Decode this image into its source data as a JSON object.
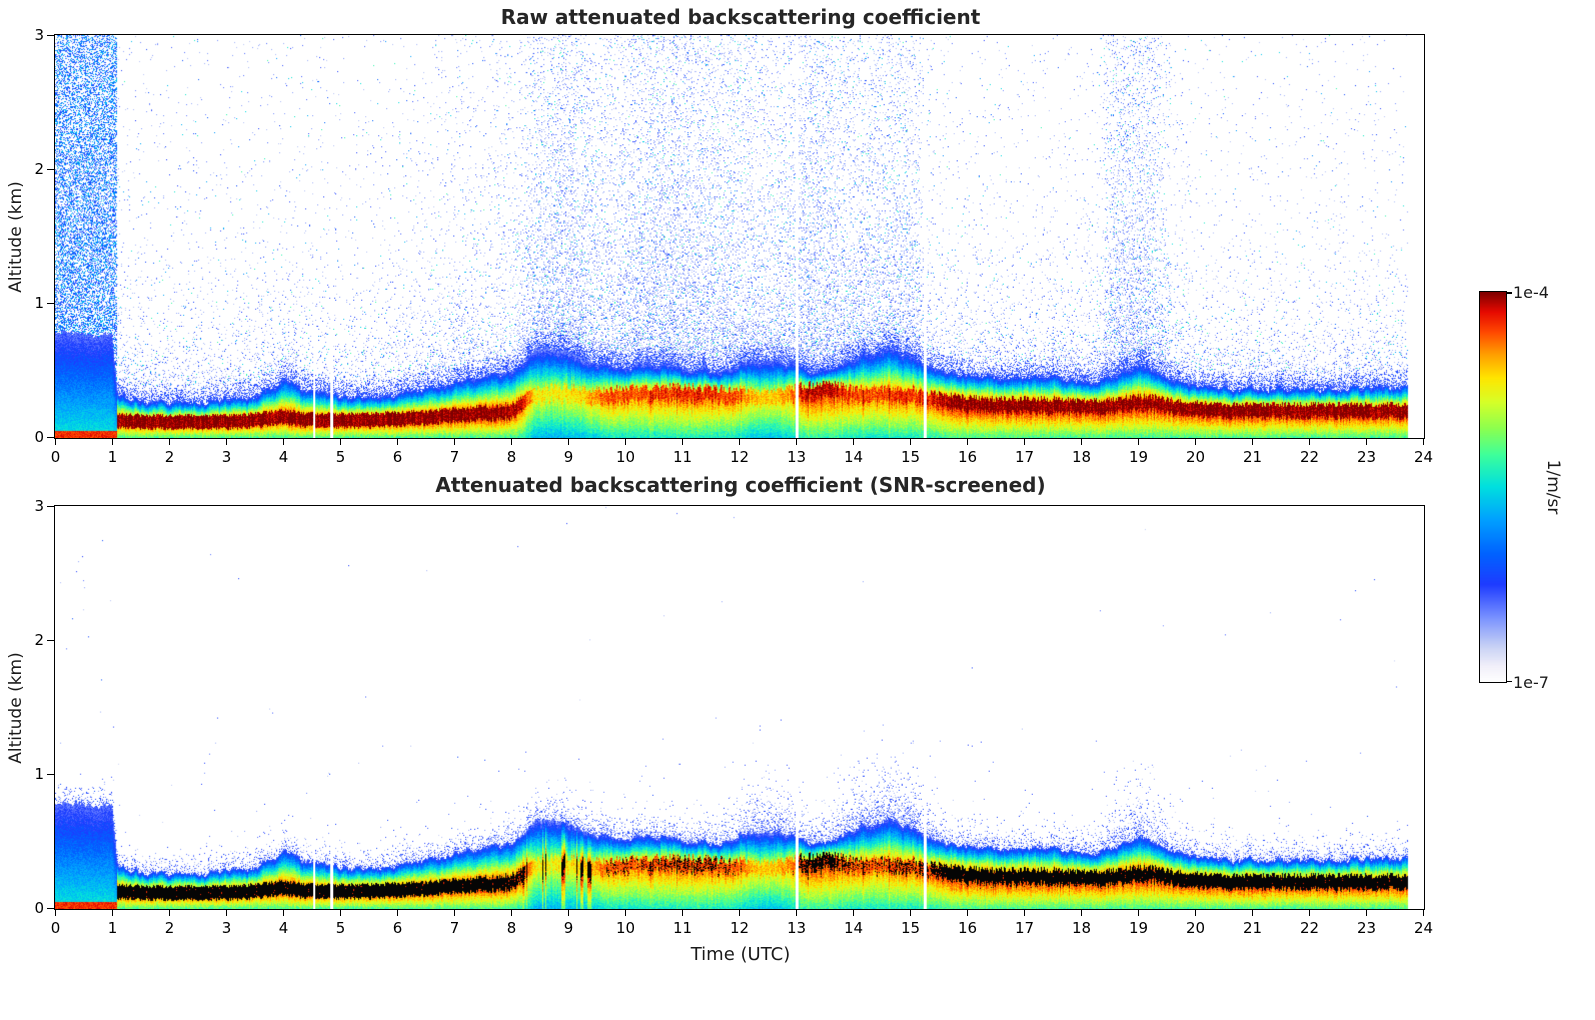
{
  "chart_data": {
    "type": "heatmap",
    "panels": [
      {
        "title": "Raw attenuated backscattering coefficient"
      },
      {
        "title": "Attenuated backscattering coefficient (SNR-screened)"
      }
    ],
    "xlabel": "Time (UTC)",
    "ylabel": "Altitude (km)",
    "xlim": [
      0,
      24
    ],
    "ylim": [
      0,
      3
    ],
    "xticks": [
      0,
      1,
      2,
      3,
      4,
      5,
      6,
      7,
      8,
      9,
      10,
      11,
      12,
      13,
      14,
      15,
      16,
      17,
      18,
      19,
      20,
      21,
      22,
      23,
      24
    ],
    "yticks": [
      0,
      1,
      2,
      3
    ],
    "colorbar": {
      "label": "1/m/sr",
      "ticks": [
        "1e-4",
        "1e-7"
      ],
      "vmax": 0.0001,
      "vmin": 1e-07
    },
    "value_scale": "log10 normalized 0-1 over [1e-7, 1e-4] 1/m/sr",
    "data_end_hour": 23.72,
    "gaps_hours": [
      [
        4.53,
        4.57
      ],
      [
        4.83,
        4.87
      ],
      [
        12.98,
        13.04
      ],
      [
        15.22,
        15.28
      ]
    ],
    "colormap_stops": [
      [
        0.0,
        "#ffffff"
      ],
      [
        0.04,
        "#f2f0fa"
      ],
      [
        0.09,
        "#c8d2f5"
      ],
      [
        0.16,
        "#7e96ff"
      ],
      [
        0.25,
        "#1e3cff"
      ],
      [
        0.33,
        "#0064ff"
      ],
      [
        0.42,
        "#00a4ff"
      ],
      [
        0.5,
        "#00e0e0"
      ],
      [
        0.58,
        "#3cff9e"
      ],
      [
        0.65,
        "#8cff50"
      ],
      [
        0.72,
        "#d8ff28"
      ],
      [
        0.78,
        "#ffe600"
      ],
      [
        0.84,
        "#ffa000"
      ],
      [
        0.9,
        "#ff4600"
      ],
      [
        0.95,
        "#e60a00"
      ],
      [
        1.0,
        "#800000"
      ]
    ],
    "time_profile": {
      "t_hours": [
        0,
        0.5,
        1.0,
        1.1,
        1.5,
        2,
        2.5,
        3,
        3.5,
        4,
        4.3,
        4.6,
        5,
        5.5,
        6,
        6.5,
        7,
        7.5,
        8,
        8.2,
        8.4,
        8.7,
        9,
        9.3,
        9.6,
        10,
        10.5,
        11,
        11.5,
        11.9,
        12.2,
        12.6,
        12.9,
        13.1,
        13.4,
        13.7,
        14,
        14.5,
        15,
        15.2,
        15.45,
        15.7,
        16,
        16.5,
        17,
        17.5,
        18,
        18.3,
        18.6,
        19,
        19.3,
        19.6,
        20,
        20.5,
        21,
        21.5,
        22,
        22.5,
        23,
        23.4,
        23.7
      ],
      "layer_top_km": [
        0.8,
        0.78,
        0.76,
        0.3,
        0.28,
        0.27,
        0.27,
        0.28,
        0.3,
        0.44,
        0.36,
        0.34,
        0.31,
        0.3,
        0.32,
        0.36,
        0.42,
        0.45,
        0.48,
        0.55,
        0.64,
        0.66,
        0.63,
        0.58,
        0.54,
        0.52,
        0.55,
        0.52,
        0.5,
        0.52,
        0.58,
        0.6,
        0.56,
        0.52,
        0.5,
        0.52,
        0.6,
        0.66,
        0.62,
        0.56,
        0.52,
        0.48,
        0.47,
        0.45,
        0.45,
        0.44,
        0.42,
        0.43,
        0.46,
        0.55,
        0.5,
        0.42,
        0.38,
        0.37,
        0.36,
        0.36,
        0.36,
        0.36,
        0.37,
        0.38,
        0.38
      ],
      "layer_peak_alt_km": [
        0.05,
        0.05,
        0.05,
        0.13,
        0.12,
        0.12,
        0.12,
        0.12,
        0.13,
        0.16,
        0.14,
        0.13,
        0.13,
        0.13,
        0.14,
        0.15,
        0.17,
        0.18,
        0.2,
        0.25,
        0.32,
        0.33,
        0.33,
        0.32,
        0.31,
        0.32,
        0.33,
        0.33,
        0.32,
        0.31,
        0.3,
        0.3,
        0.32,
        0.34,
        0.35,
        0.34,
        0.32,
        0.32,
        0.32,
        0.3,
        0.28,
        0.26,
        0.25,
        0.24,
        0.24,
        0.24,
        0.23,
        0.23,
        0.24,
        0.26,
        0.25,
        0.23,
        0.21,
        0.2,
        0.2,
        0.2,
        0.2,
        0.2,
        0.2,
        0.2,
        0.2
      ],
      "layer_intensity_lognorm": [
        0.95,
        0.95,
        0.95,
        1.0,
        1.0,
        1.0,
        1.0,
        1.0,
        1.0,
        1.0,
        1.0,
        1.0,
        1.0,
        1.0,
        1.0,
        1.0,
        1.0,
        1.0,
        1.0,
        0.95,
        0.78,
        0.75,
        0.78,
        0.8,
        0.88,
        0.9,
        0.9,
        0.92,
        0.92,
        0.9,
        0.82,
        0.8,
        0.85,
        0.95,
        0.98,
        0.95,
        0.9,
        0.9,
        0.92,
        0.92,
        0.95,
        1.0,
        1.0,
        1.0,
        1.0,
        1.0,
        1.0,
        1.0,
        1.0,
        1.0,
        1.0,
        1.0,
        1.0,
        1.0,
        1.0,
        1.0,
        1.0,
        1.0,
        1.0,
        1.0,
        1.0
      ],
      "noise_density_raw": [
        0.95,
        0.95,
        0.95,
        0.1,
        0.06,
        0.06,
        0.06,
        0.06,
        0.06,
        0.08,
        0.08,
        0.08,
        0.06,
        0.06,
        0.07,
        0.12,
        0.18,
        0.18,
        0.2,
        0.35,
        0.6,
        0.7,
        0.75,
        0.7,
        0.45,
        0.55,
        0.75,
        0.75,
        0.65,
        0.55,
        0.5,
        0.45,
        0.5,
        0.7,
        0.8,
        0.55,
        0.5,
        0.55,
        0.6,
        0.3,
        0.1,
        0.07,
        0.07,
        0.07,
        0.07,
        0.07,
        0.08,
        0.15,
        0.75,
        0.8,
        0.6,
        0.15,
        0.06,
        0.06,
        0.06,
        0.06,
        0.06,
        0.06,
        0.06,
        0.06,
        0.06
      ],
      "cloud_cap_screened": [
        0.05,
        0.05,
        0.05,
        0.06,
        0.06,
        0.06,
        0.06,
        0.06,
        0.06,
        0.08,
        0.07,
        0.07,
        0.06,
        0.06,
        0.06,
        0.07,
        0.08,
        0.08,
        0.08,
        0.1,
        0.12,
        0.12,
        0.12,
        0.12,
        0.1,
        0.1,
        0.1,
        0.1,
        0.1,
        0.15,
        0.3,
        0.3,
        0.25,
        0.2,
        0.2,
        0.25,
        0.35,
        0.35,
        0.35,
        0.3,
        0.15,
        0.08,
        0.08,
        0.08,
        0.08,
        0.08,
        0.08,
        0.12,
        0.3,
        0.35,
        0.3,
        0.12,
        0.08,
        0.08,
        0.08,
        0.08,
        0.08,
        0.08,
        0.08,
        0.08,
        0.08
      ]
    }
  }
}
